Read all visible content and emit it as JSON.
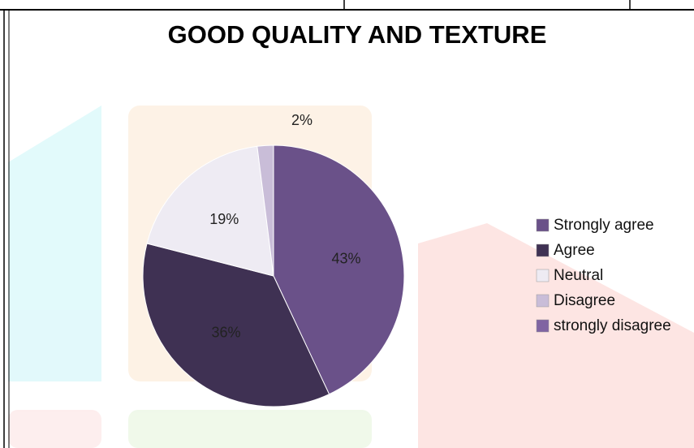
{
  "chart_data": {
    "type": "pie",
    "title": "GOOD QUALITY AND TEXTURE",
    "categories": [
      "Strongly agree",
      "Agree",
      "Neutral",
      "Disagree",
      "strongly disagree"
    ],
    "values": [
      43,
      36,
      19,
      2,
      0
    ],
    "value_labels": [
      "43%",
      "36%",
      "19%",
      "2%",
      null
    ],
    "colors": [
      "#6a5189",
      "#3f3153",
      "#eeebf3",
      "#c9bdd8",
      "#8064a2"
    ],
    "legend": "right"
  }
}
